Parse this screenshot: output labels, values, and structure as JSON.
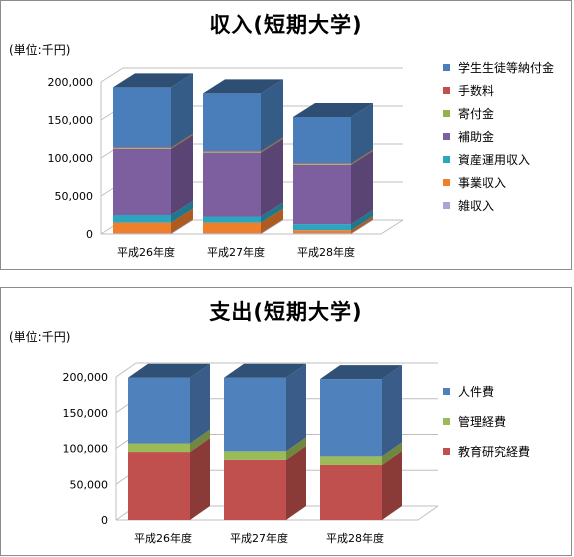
{
  "chart_data": [
    {
      "type": "bar",
      "stacked": true,
      "three_d": true,
      "title": "収入(短期大学)",
      "unit_label": "(単位:千円)",
      "categories": [
        "平成26年度",
        "平成27年度",
        "平成28年度"
      ],
      "ylim": [
        0,
        200000
      ],
      "yticks": [
        "0",
        "50,000",
        "100,000",
        "150,000",
        "200,000"
      ],
      "legend_position": "right",
      "series": [
        {
          "name": "雑収入",
          "color": "#a9a3d6",
          "values": [
            1000,
            1000,
            1000
          ]
        },
        {
          "name": "事業収入",
          "color": "#f07f2a",
          "values": [
            14000,
            14000,
            4000
          ]
        },
        {
          "name": "資産運用収入",
          "color": "#2ca5c1",
          "values": [
            10000,
            8000,
            8000
          ]
        },
        {
          "name": "補助金",
          "color": "#7d5fa0",
          "values": [
            87000,
            84000,
            78000
          ]
        },
        {
          "name": "寄付金",
          "color": "#8fb44c",
          "values": [
            1000,
            1000,
            1000
          ]
        },
        {
          "name": "手数料",
          "color": "#c0504d",
          "values": [
            1000,
            1000,
            1000
          ]
        },
        {
          "name": "学生生徒等納付金",
          "color": "#4a7ebb",
          "values": [
            79000,
            76000,
            61000
          ]
        }
      ]
    },
    {
      "type": "bar",
      "stacked": true,
      "three_d": true,
      "title": "支出(短期大学)",
      "unit_label": "(単位:千円)",
      "categories": [
        "平成26年度",
        "平成27年度",
        "平成28年度"
      ],
      "ylim": [
        0,
        200000
      ],
      "yticks": [
        "0",
        "50,000",
        "100,000",
        "150,000",
        "200,000"
      ],
      "legend_position": "right",
      "series": [
        {
          "name": "教育研究経費",
          "color": "#c0504d",
          "values": [
            95000,
            84000,
            77000
          ]
        },
        {
          "name": "管理経費",
          "color": "#9bbb59",
          "values": [
            12000,
            12000,
            12000
          ]
        },
        {
          "name": "人件費",
          "color": "#4f81bd",
          "values": [
            92000,
            103000,
            108000
          ]
        }
      ]
    }
  ]
}
